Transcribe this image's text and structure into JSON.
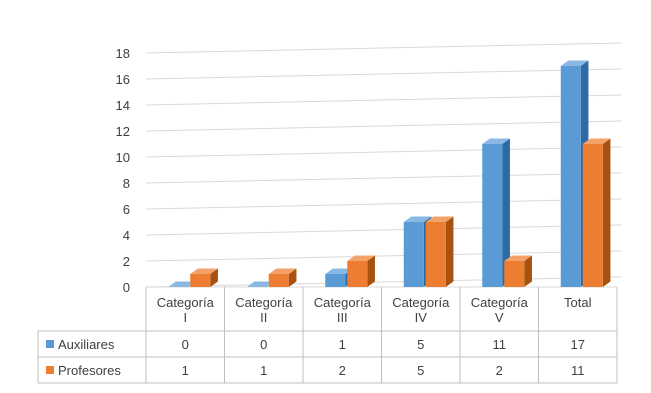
{
  "chart_data": {
    "type": "bar",
    "categories": [
      [
        "Categoría",
        "I"
      ],
      [
        "Categoría",
        "II"
      ],
      [
        "Categoría",
        "III"
      ],
      [
        "Categoría",
        "IV"
      ],
      [
        "Categoría",
        "V"
      ],
      [
        "Total"
      ]
    ],
    "series": [
      {
        "name": "Auxiliares",
        "values": [
          0,
          0,
          1,
          5,
          11,
          17
        ],
        "color": "#5b9bd5",
        "side": "#2e6aa3",
        "top": "#8ab8e4"
      },
      {
        "name": "Profesores",
        "values": [
          1,
          1,
          2,
          5,
          2,
          11
        ],
        "color": "#ed7d31",
        "side": "#a9520f",
        "top": "#f3a36a"
      }
    ],
    "y_ticks": [
      0,
      2,
      4,
      6,
      8,
      10,
      12,
      14,
      16,
      18
    ],
    "ylim": [
      0,
      18
    ],
    "grid": true,
    "bar_style": "3d",
    "data_table": true,
    "legend_placement": "data-table-left"
  }
}
